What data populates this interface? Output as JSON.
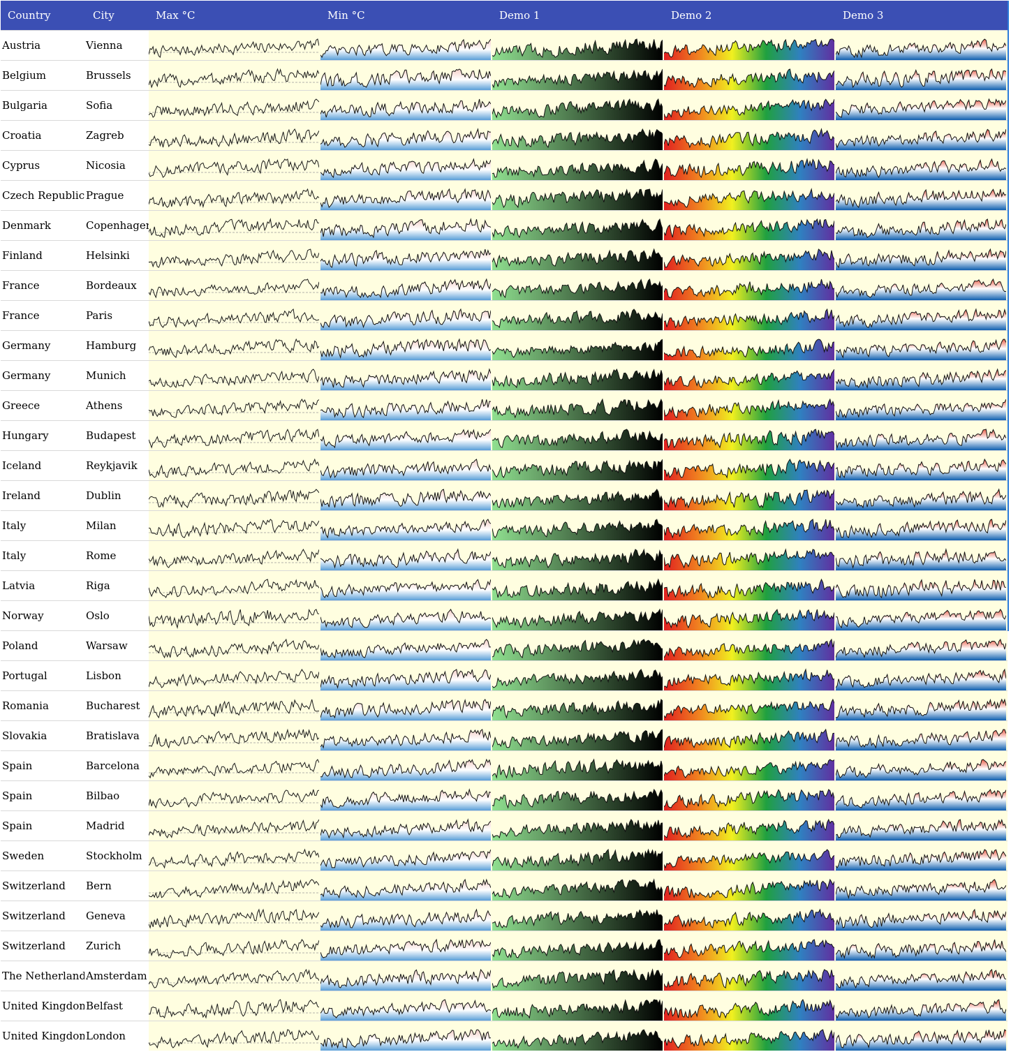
{
  "header": {
    "columns": [
      "Country",
      "City",
      "Max °C",
      "Min °C",
      "Demo 1",
      "Demo 2",
      "Demo 3"
    ]
  },
  "colors": {
    "header_bg": "#3b4fb4",
    "cell_bg": "#fffee0",
    "demo1_gradient": [
      "#90e090",
      "#000000"
    ],
    "demo2_gradient": [
      "#e02020",
      "#f08020",
      "#f0f020",
      "#20a040",
      "#3080c0",
      "#6030a0"
    ],
    "demo3_gradient": [
      "#ffffff",
      "#1060b0"
    ]
  },
  "chart_data": {
    "type": "table",
    "series_kind": "sparkline",
    "columns": [
      "Max °C",
      "Min °C",
      "Demo 1",
      "Demo 2",
      "Demo 3"
    ],
    "rows": [
      {
        "country": "Austria",
        "city": "Vienna"
      },
      {
        "country": "Belgium",
        "city": "Brussels"
      },
      {
        "country": "Bulgaria",
        "city": "Sofia"
      },
      {
        "country": "Croatia",
        "city": "Zagreb"
      },
      {
        "country": "Cyprus",
        "city": "Nicosia"
      },
      {
        "country": "Czech Republic",
        "city": "Prague"
      },
      {
        "country": "Denmark",
        "city": "Copenhagen"
      },
      {
        "country": "Finland",
        "city": "Helsinki"
      },
      {
        "country": "France",
        "city": "Bordeaux"
      },
      {
        "country": "France",
        "city": "Paris"
      },
      {
        "country": "Germany",
        "city": "Hamburg"
      },
      {
        "country": "Germany",
        "city": "Munich"
      },
      {
        "country": "Greece",
        "city": "Athens"
      },
      {
        "country": "Hungary",
        "city": "Budapest"
      },
      {
        "country": "Iceland",
        "city": "Reykjavik"
      },
      {
        "country": "Ireland",
        "city": "Dublin"
      },
      {
        "country": "Italy",
        "city": "Milan"
      },
      {
        "country": "Italy",
        "city": "Rome"
      },
      {
        "country": "Latvia",
        "city": "Riga"
      },
      {
        "country": "Norway",
        "city": "Oslo"
      },
      {
        "country": "Poland",
        "city": "Warsaw"
      },
      {
        "country": "Portugal",
        "city": "Lisbon"
      },
      {
        "country": "Romania",
        "city": "Bucharest"
      },
      {
        "country": "Slovakia",
        "city": "Bratislava"
      },
      {
        "country": "Spain",
        "city": "Barcelona"
      },
      {
        "country": "Spain",
        "city": "Bilbao"
      },
      {
        "country": "Spain",
        "city": "Madrid"
      },
      {
        "country": "Sweden",
        "city": "Stockholm"
      },
      {
        "country": "Switzerland",
        "city": "Bern"
      },
      {
        "country": "Switzerland",
        "city": "Geneva"
      },
      {
        "country": "Switzerland",
        "city": "Zurich"
      },
      {
        "country": "The Netherlands",
        "city": "Amsterdam"
      },
      {
        "country": "United Kingdom",
        "city": "Belfast"
      },
      {
        "country": "United Kingdom",
        "city": "London"
      }
    ]
  }
}
